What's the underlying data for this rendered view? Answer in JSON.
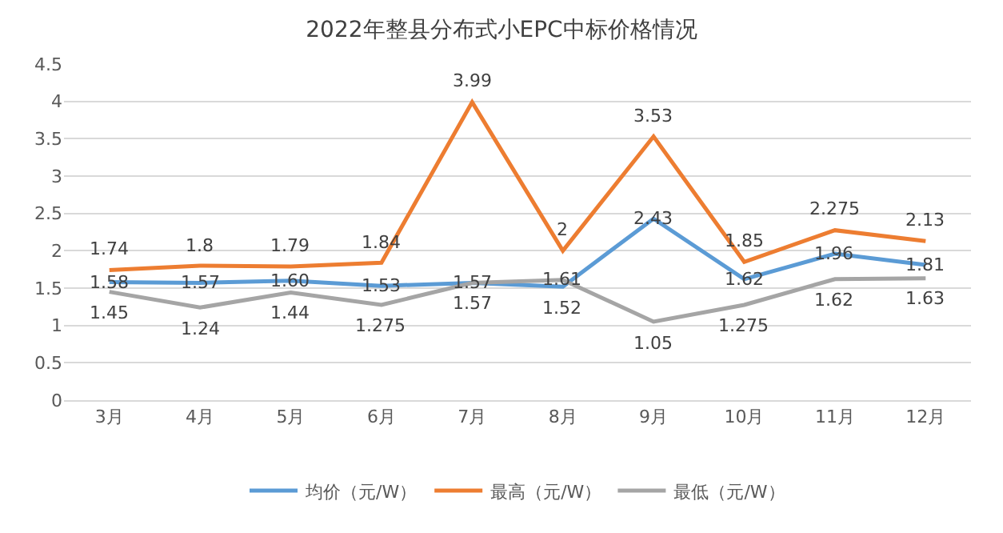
{
  "chart_data": {
    "type": "line",
    "title": "2022年整县分布式小EPC中标价格情况",
    "categories": [
      "3月",
      "4月",
      "5月",
      "6月",
      "7月",
      "8月",
      "9月",
      "10月",
      "11月",
      "12月"
    ],
    "series": [
      {
        "name": "均价（元/W）",
        "color": "#5b9bd5",
        "values": [
          1.58,
          1.57,
          1.6,
          1.53,
          1.57,
          1.52,
          2.43,
          1.62,
          1.96,
          1.81
        ],
        "value_labels": [
          "1.58",
          "1.57",
          "1.60",
          "1.53",
          "1.57",
          "1.52",
          "2.43",
          "1.62",
          "1.96",
          "1.81"
        ]
      },
      {
        "name": "最高（元/W）",
        "color": "#ed7d31",
        "values": [
          1.74,
          1.8,
          1.79,
          1.84,
          3.99,
          2,
          3.53,
          1.85,
          2.275,
          2.13
        ],
        "value_labels": [
          "1.74",
          "1.8",
          "1.79",
          "1.84",
          "3.99",
          "2",
          "3.53",
          "1.85",
          "2.275",
          "2.13"
        ]
      },
      {
        "name": "最低（元/W）",
        "color": "#a5a5a5",
        "values": [
          1.45,
          1.24,
          1.44,
          1.275,
          1.57,
          1.61,
          1.05,
          1.275,
          1.62,
          1.63
        ],
        "value_labels": [
          "1.45",
          "1.24",
          "1.44",
          "1.275",
          "1.57",
          "1.61",
          "1.05",
          "1.275",
          "1.62",
          "1.63"
        ]
      }
    ],
    "ylim": [
      0,
      4.5
    ],
    "yticks": [
      0,
      0.5,
      1,
      1.5,
      2,
      2.5,
      3,
      3.5,
      4,
      4.5
    ],
    "grid": "y",
    "legend": "bottom",
    "marker": "none",
    "line_style": "solid"
  }
}
